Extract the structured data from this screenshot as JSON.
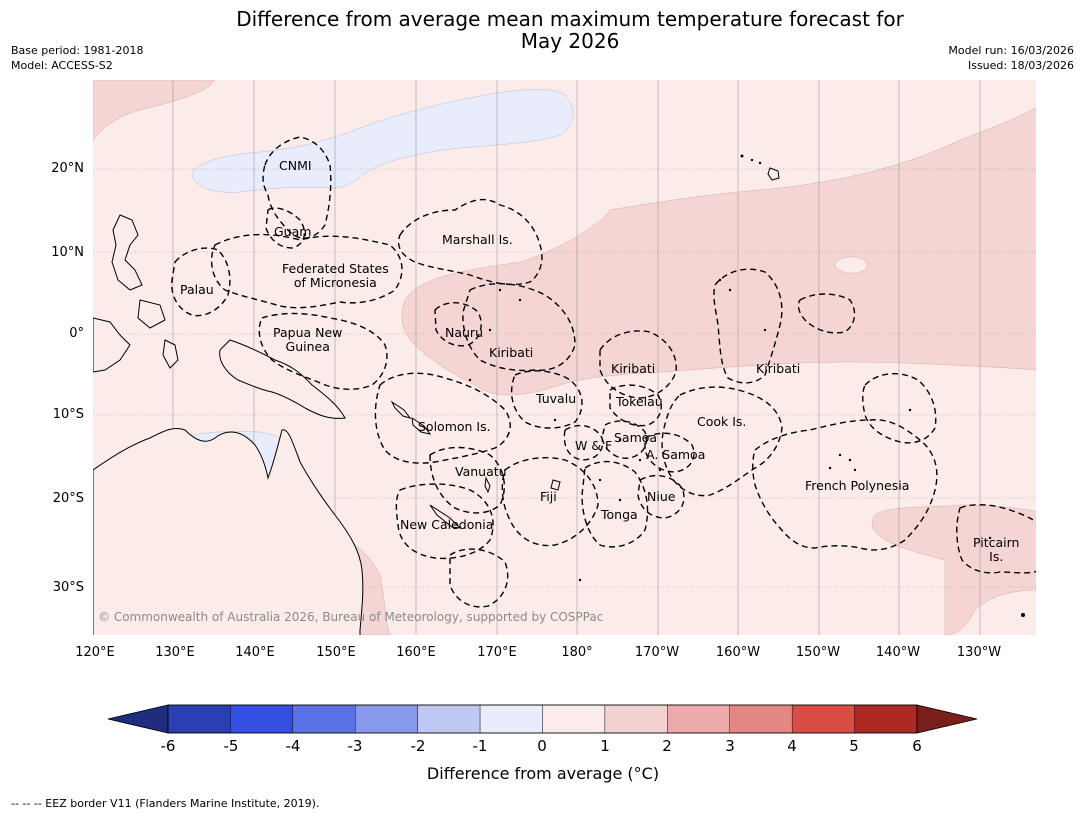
{
  "title": {
    "line1": "Difference from average mean maximum temperature forecast for",
    "line2": "May 2026"
  },
  "meta_left": {
    "base_period": "Base period: 1981-2018",
    "model": "Model: ACCESS-S2"
  },
  "meta_right": {
    "model_run": "Model run: 16/03/2026",
    "issued": "Issued: 18/03/2026"
  },
  "lat_labels": [
    "20°N",
    "10°N",
    "0°",
    "10°S",
    "20°S",
    "30°S"
  ],
  "lon_labels": [
    "120°E",
    "130°E",
    "140°E",
    "150°E",
    "160°E",
    "170°E",
    "180°",
    "170°W",
    "160°W",
    "150°W",
    "140°W",
    "130°W"
  ],
  "places": {
    "cnmi": "CNMI",
    "guam": "Guam",
    "marshall": "Marshall Is.",
    "fsm1": "Federated States",
    "fsm2": "of Micronesia",
    "palau": "Palau",
    "png1": "Papua New",
    "png2": "Guinea",
    "nauru": "Nauru",
    "kiribati_w": "Kiribati",
    "kiribati_c": "Kiribati",
    "kiribati_e": "Kiribati",
    "tuvalu": "Tuvalu",
    "tokelau": "Tokelau",
    "cook": "Cook Is.",
    "solomon": "Solomon Is.",
    "samoa": "Samoa",
    "wf": "W & F",
    "asamoa": "A. Samoa",
    "vanuatu": "Vanuatu",
    "fiji": "Fiji",
    "niue": "Niue",
    "tonga": "Tonga",
    "newcal": "New Caledonia",
    "frpoly": "French Polynesia",
    "pitcairn1": "Pitcairn",
    "pitcairn2": "Is."
  },
  "copyright": "© Commonwealth of Australia 2026, Bureau of Meteorology, supported by COSPPac",
  "colorbar": {
    "ticks": [
      "-6",
      "-5",
      "-4",
      "-3",
      "-2",
      "-1",
      "0",
      "1",
      "2",
      "3",
      "4",
      "5",
      "6"
    ],
    "colors": [
      "#2a3fb3",
      "#3350e3",
      "#5a72e6",
      "#8898eb",
      "#bfc7f3",
      "#e8ecfb",
      "#fbeceb",
      "#f4d2d2",
      "#edaaaa",
      "#e48682",
      "#da4d45",
      "#ad2a24"
    ],
    "under_color": "#1f2d80",
    "over_color": "#7a1f1b",
    "label": "Difference from average (°C)"
  },
  "footnote": "--  --  -- EEZ border V11 (Flanders Marine Institute, 2019)."
}
